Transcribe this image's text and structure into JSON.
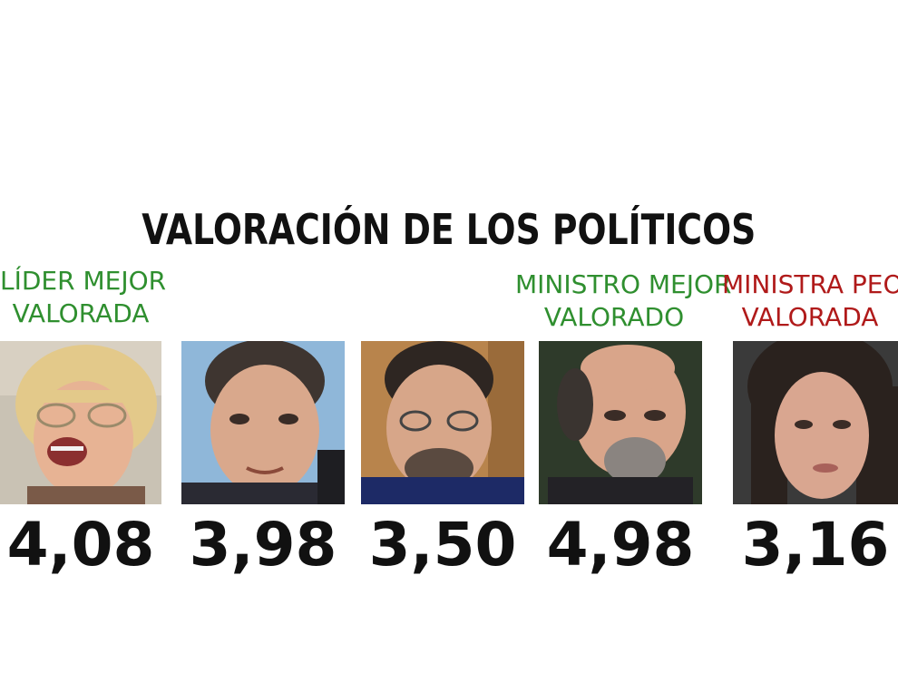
{
  "title": "VALORACIÓN DE LOS POLÍTICOS",
  "colors": {
    "positive": "#2f8f2f",
    "negative": "#b01a1a",
    "text": "#111111"
  },
  "politicians": [
    {
      "caption_line1": "LÍDER MEJOR",
      "caption_line2": "VALORADA",
      "caption_tone": "positive",
      "score": "4,08"
    },
    {
      "caption_line1": "",
      "caption_line2": "",
      "caption_tone": "",
      "score": "3,98"
    },
    {
      "caption_line1": "",
      "caption_line2": "",
      "caption_tone": "",
      "score": "3,50"
    },
    {
      "caption_line1": "MINISTRO MEJOR",
      "caption_line2": "VALORADO",
      "caption_tone": "positive",
      "score": "4,98"
    },
    {
      "caption_line1": "MINISTRA PEOR",
      "caption_line2": "VALORADA",
      "caption_tone": "negative",
      "score": "3,16"
    }
  ]
}
